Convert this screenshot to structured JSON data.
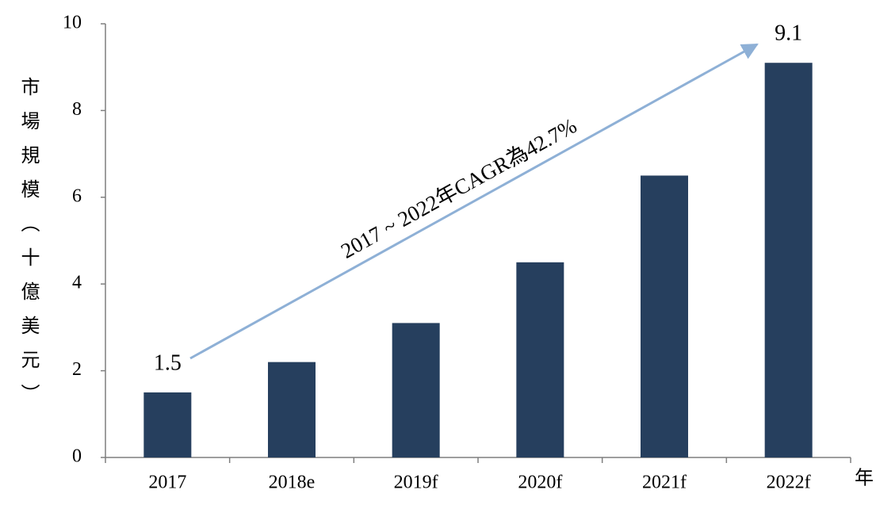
{
  "chart_data": {
    "type": "bar",
    "y_label": "市場規模（十億美元）",
    "x_label": "年",
    "annotation": "2017 ~ 2022年CAGR為42.7%",
    "categories": [
      "2017",
      "2018e",
      "2019f",
      "2020f",
      "2021f",
      "2022f"
    ],
    "values": [
      1.5,
      2.2,
      3.1,
      4.5,
      6.5,
      9.1
    ],
    "value_labels": [
      "1.5",
      null,
      null,
      null,
      null,
      "9.1"
    ],
    "color": "#263f5e",
    "ylim": [
      0,
      10
    ],
    "yticks": [
      0,
      2,
      4,
      6,
      8,
      10
    ],
    "grid": false
  }
}
